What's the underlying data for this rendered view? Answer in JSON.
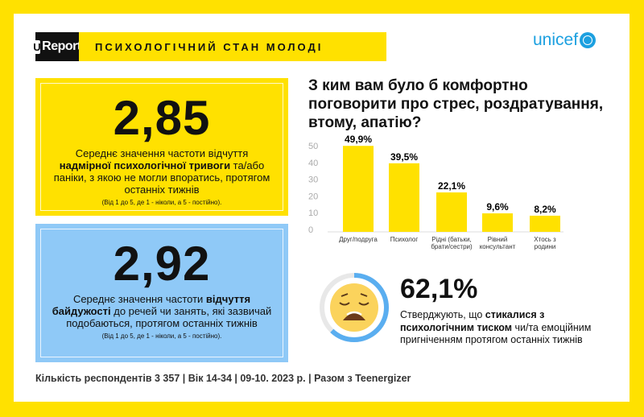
{
  "header": {
    "logo": "Report",
    "logo_mark": "U",
    "title": "ПСИХОЛОГІЧНИЙ СТАН МОЛОДІ",
    "partner": "unicef"
  },
  "stat1": {
    "value": "2,85",
    "desc_pre": "Середнє значення частоти відчуття ",
    "desc_bold": "надмірної психологічної тривоги",
    "desc_post": " та/або паніки, з якою не могли впоратись, протягом останніх тижнів",
    "scale": "(Від 1 до 5, де 1 - ніколи, а 5 - постійно).",
    "color": "#ffe100"
  },
  "stat2": {
    "value": "2,92",
    "desc_pre": "Середнє значення частоти ",
    "desc_bold1": "відчуття байдужості",
    "desc_post": " до речей чи занять, які зазвичай подобаються, протягом останніх тижнів",
    "scale": "(Від 1 до 5, де 1 - ніколи, а 5 - постійно).",
    "color": "#8fc9f7"
  },
  "chart_data": {
    "type": "bar",
    "title": "З ким вам було б комфортно поговорити про стрес, роздратування, втому, апатію?",
    "categories": [
      "Друг/подруга",
      "Психолог",
      "Рідні (батьки, брати/сестри)",
      "Рівний консультант",
      "Хтось з родини"
    ],
    "category_lines": [
      [
        "Друг/подруга"
      ],
      [
        "Психолог"
      ],
      [
        "Рідні (батьки,",
        "брати/сестри)"
      ],
      [
        "Рівний",
        "консультант"
      ],
      [
        "Хтось з",
        "родини"
      ]
    ],
    "values": [
      49.9,
      39.5,
      22.1,
      9.6,
      8.2
    ],
    "data_labels": [
      "49,9%",
      "39,5%",
      "22,1%",
      "9,6%",
      "8,2%"
    ],
    "yticks": [
      "0",
      "10",
      "20",
      "30",
      "40",
      "50"
    ],
    "ylim": [
      0,
      50
    ],
    "bar_color": "#ffe100",
    "grid": false
  },
  "pressure": {
    "value": "62,1%",
    "fraction": 0.621,
    "icon": "tired-face-emoji",
    "ring_color": "#5aaef0",
    "desc_pre": "Стверджують, що ",
    "desc_bold": "стикалися з психологічним тиском",
    "desc_post": " чи/та емоційним пригніченням протягом останніх тижнів"
  },
  "footer": "Кількість респондентів 3 357 | Вік 14-34 | 09-10. 2023 р. | Разом з Teenergizer"
}
